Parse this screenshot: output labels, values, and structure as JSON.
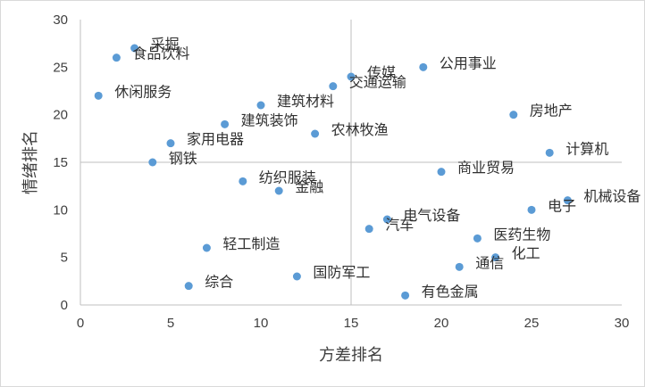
{
  "chart_data": {
    "type": "scatter",
    "title": "",
    "xlabel": "方差排名",
    "ylabel": "情绪排名",
    "xlim": [
      0,
      30
    ],
    "ylim": [
      0,
      30
    ],
    "xticks": [
      0,
      5,
      10,
      15,
      20,
      25,
      30
    ],
    "yticks": [
      0,
      5,
      10,
      15,
      20,
      25,
      30
    ],
    "reference_lines": {
      "x": 15,
      "y": 15
    },
    "grid": false,
    "legend": "none",
    "point_color": "#5b9bd5",
    "points": [
      {
        "label": "采掘",
        "x": 3,
        "y": 27
      },
      {
        "label": "食品饮料",
        "x": 2,
        "y": 26
      },
      {
        "label": "休闲服务",
        "x": 1,
        "y": 22
      },
      {
        "label": "传媒",
        "x": 15,
        "y": 24
      },
      {
        "label": "公用事业",
        "x": 19,
        "y": 25
      },
      {
        "label": "交通运输",
        "x": 14,
        "y": 23
      },
      {
        "label": "建筑材料",
        "x": 10,
        "y": 21
      },
      {
        "label": "建筑装饰",
        "x": 8,
        "y": 19
      },
      {
        "label": "农林牧渔",
        "x": 13,
        "y": 18
      },
      {
        "label": "房地产",
        "x": 24,
        "y": 20
      },
      {
        "label": "家用电器",
        "x": 5,
        "y": 17
      },
      {
        "label": "计算机",
        "x": 26,
        "y": 16
      },
      {
        "label": "钢铁",
        "x": 4,
        "y": 15
      },
      {
        "label": "商业贸易",
        "x": 20,
        "y": 14
      },
      {
        "label": "纺织服装",
        "x": 9,
        "y": 13
      },
      {
        "label": "金融",
        "x": 11,
        "y": 12
      },
      {
        "label": "机械设备",
        "x": 27,
        "y": 11
      },
      {
        "label": "电子",
        "x": 25,
        "y": 10
      },
      {
        "label": "电气设备",
        "x": 17,
        "y": 9
      },
      {
        "label": "汽车",
        "x": 16,
        "y": 8
      },
      {
        "label": "医药生物",
        "x": 22,
        "y": 7
      },
      {
        "label": "轻工制造",
        "x": 7,
        "y": 6
      },
      {
        "label": "化工",
        "x": 23,
        "y": 5
      },
      {
        "label": "通信",
        "x": 21,
        "y": 4
      },
      {
        "label": "国防军工",
        "x": 12,
        "y": 3
      },
      {
        "label": "综合",
        "x": 6,
        "y": 2
      },
      {
        "label": "有色金属",
        "x": 18,
        "y": 1
      }
    ]
  }
}
